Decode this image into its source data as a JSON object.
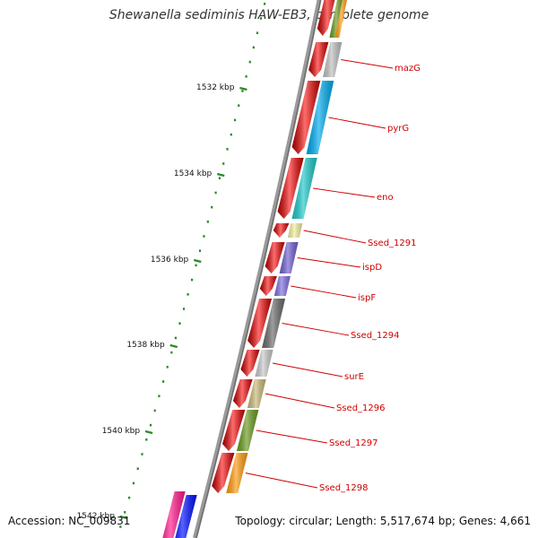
{
  "title": "Shewanella sediminis HAW-EB3, complete genome",
  "accession": "Accession: NC_009831",
  "topology": "Topology: circular; Length: 5,517,674 bp; Genes: 4,661",
  "colors": {
    "backbone": "#8c8c8c",
    "tick": "#2a8a2a",
    "forward_strand": "#ee0000",
    "label": "#d00000"
  },
  "kbp_ticks": [
    {
      "label": "1532 kbp"
    },
    {
      "label": "1534 kbp"
    },
    {
      "label": "1536 kbp"
    },
    {
      "label": "1538 kbp"
    },
    {
      "label": "1540 kbp"
    },
    {
      "label": "1542 kbp"
    }
  ],
  "genes": [
    {
      "name": "mazG",
      "color": "#c0c0c0"
    },
    {
      "name": "pyrG",
      "color": "#00aaee"
    },
    {
      "name": "eno",
      "color": "#1ec8c8"
    },
    {
      "name": "Ssed_1291",
      "color": "#f5efa0"
    },
    {
      "name": "ispD",
      "color": "#7060d0"
    },
    {
      "name": "ispF",
      "color": "#8070e0"
    },
    {
      "name": "Ssed_1294",
      "color": "#6a6a6a"
    },
    {
      "name": "surE",
      "color": "#c8c8c8"
    },
    {
      "name": "Ssed_1296",
      "color": "#c8b878"
    },
    {
      "name": "Ssed_1297",
      "color": "#6a9a20"
    },
    {
      "name": "Ssed_1298",
      "color": "#ff9a10"
    }
  ]
}
